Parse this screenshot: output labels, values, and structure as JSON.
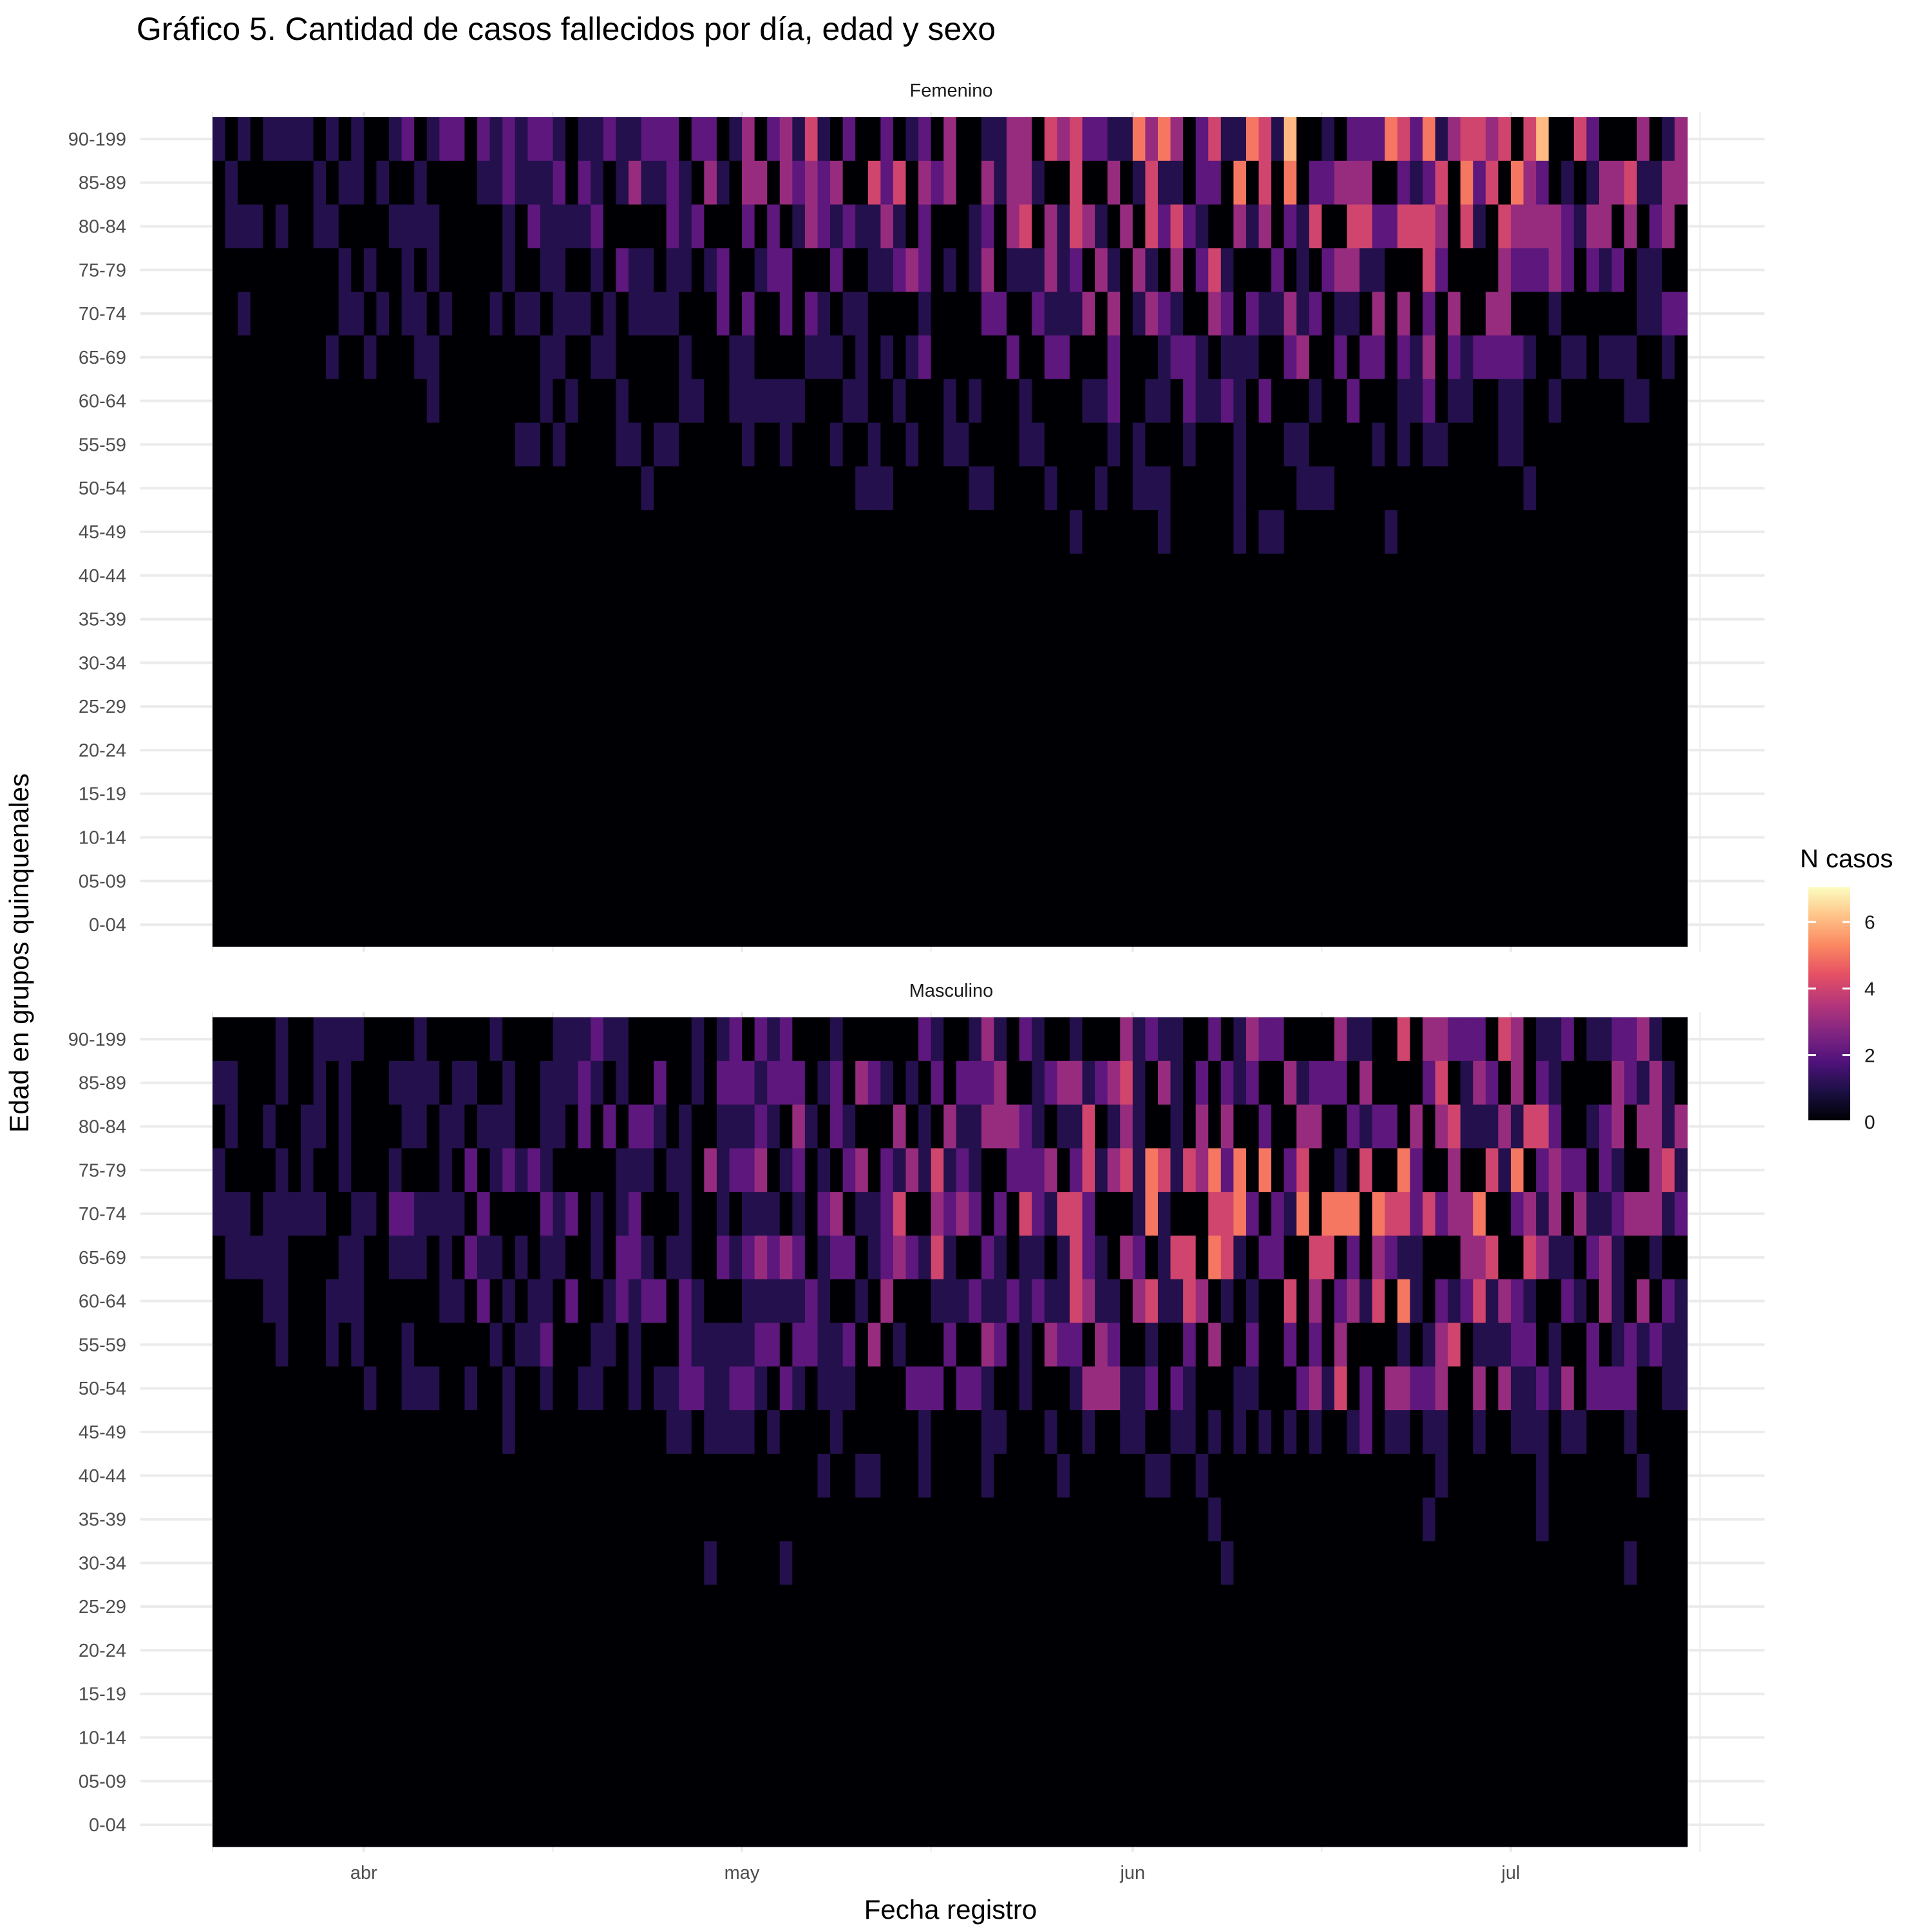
{
  "chart_data": {
    "type": "heatmap",
    "title": "Gráfico 5. Cantidad de casos fallecidos por día, edad y sexo",
    "xlabel": "Fecha registro",
    "ylabel": "Edad en grupos quinquenales",
    "x_ticks": [
      "abr",
      "may",
      "jun",
      "jul"
    ],
    "x_range": [
      "2020-03-20",
      "2020-07-15"
    ],
    "age_groups": [
      "90-199",
      "85-89",
      "80-84",
      "75-79",
      "70-74",
      "65-69",
      "60-64",
      "55-59",
      "50-54",
      "45-49",
      "40-44",
      "35-39",
      "30-34",
      "25-29",
      "20-24",
      "15-19",
      "10-14",
      "05-09",
      "0-04"
    ],
    "legend": {
      "title": "N casos",
      "ticks": [
        "0",
        "2",
        "4",
        "6"
      ],
      "range": [
        0,
        7
      ],
      "colors": [
        "#000004",
        "#1c1044",
        "#4f127b",
        "#812581",
        "#b5367a",
        "#e55064",
        "#fb8761",
        "#fec287",
        "#fcfdbf"
      ]
    },
    "panels": [
      {
        "name": "Femenino",
        "description_levels": "mostly 0-1 per day at younger ages; up to ~7 at ages 75+ in late June"
      },
      {
        "name": "Masculino",
        "description_levels": "up to ~7 at ages 60-89 from late May to early July"
      }
    ]
  }
}
